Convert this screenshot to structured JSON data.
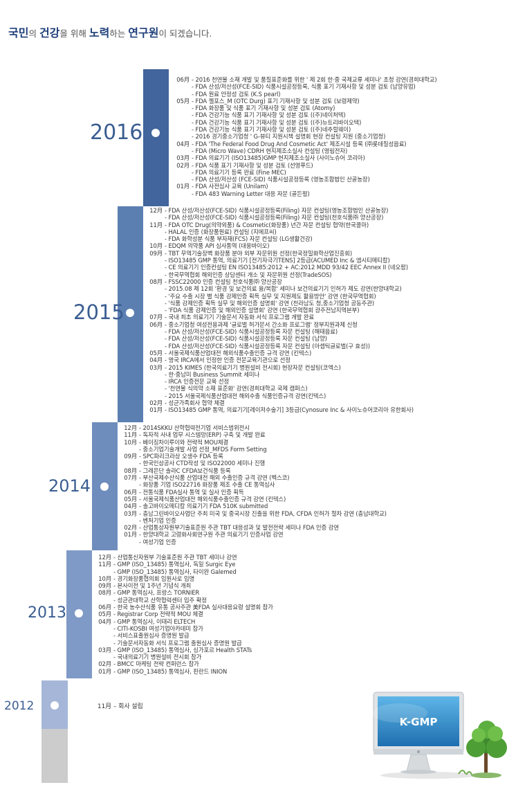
{
  "headline": {
    "p1": "국민",
    "p2": "의 ",
    "p3": "건강",
    "p4": "을 위해 ",
    "p5": "노력",
    "p6": "하는 ",
    "p7": "연구원",
    "p8": "이 되겠습니다."
  },
  "colors": {
    "bar_2016": "#41659c",
    "bar_2015": "#5c7fb2",
    "bar_2014": "#6e8dbd",
    "bar_2013": "#7f9ac6",
    "bar_2012": "#a5b6d8",
    "bar_gray": "#cccccc",
    "year_text": "#3a5d91"
  },
  "logo_text": "K-GMP",
  "years": [
    {
      "year": "2016",
      "events": [
        {
          "m": "06月",
          "t": "- 2016 천연물 소재 개발 및 품질표준화를 위한 ' 제 2회 한·중 국제교류 세미나' 초청 강연(경희대학교)"
        },
        {
          "m": "",
          "t": "- FDA 산성/저산성(FCE-SID) 식품시설공정등록, 식품 표기 기재사항 및 성분 검토 (남양유업)"
        },
        {
          "m": "",
          "t": "- FDA 원료 안정성 검토 (K.S pearl)"
        },
        {
          "m": "05月",
          "t": "- FDA 젤포스_M (OTC Durg) 표기 기재사항 및 성분 검토 (보령제약)"
        },
        {
          "m": "",
          "t": "- FDA 화장품 및 식품 표기 기재사항 및 성분 검토 (Atomy)"
        },
        {
          "m": "",
          "t": "- FDA 건강기능 식품 표기 기재사항 및 성분 검토 ((주)네이처텍)"
        },
        {
          "m": "",
          "t": "- FDA 건강기능 식품 표기 기재사항 및 성분 검토 ((주)뉴트리바이오텍)"
        },
        {
          "m": "",
          "t": "- FDA 건강기능 식품 표기 기재사항 및 성분 검토 ((주)네추럴웨이)"
        },
        {
          "m": "",
          "t": "- 2016 경기중소기업청 ' G-뷰티 지원시책 설명회 현장 컨설팅 지원 (중소기업청)"
        },
        {
          "m": "04月",
          "t": "- FDA 'The Federal Food Drug And Cosmetic Act' 제조시설 등록 (㈜롯데칠성음료)"
        },
        {
          "m": "",
          "t": "- FDA (Micro Wave) CDRH 현지제조소실사 컨설팅 (영림전자)"
        },
        {
          "m": "03月",
          "t": "- FDA 의료기기 (ISO13485)GMP 현지제조소실사 (사이노슈어 코리아)"
        },
        {
          "m": "02月",
          "t": "- FDA 식품 표기 기재사항 및 성분 검토 (선영푸드)"
        },
        {
          "m": "",
          "t": "- FDA 의료기기 등록 완료 (Fine MEC)"
        },
        {
          "m": "",
          "t": "- FDA 산성/저산성 (FCE-SID) 식품시설공정등록 (영농조합법인 산골농장)"
        },
        {
          "m": "01月",
          "t": "- FDA 사전심사 교육 (Unilam)"
        },
        {
          "m": "",
          "t": "- FDA 483 Warning Letter 대응 자문 (골든펄)"
        }
      ]
    },
    {
      "year": "2015",
      "events": [
        {
          "m": "12月",
          "t": "- FDA 산성/저산성(FCE-SID) 식품시설공정등록(Filing) 자문 컨설팅(영농조합법인 산골농장)"
        },
        {
          "m": "",
          "t": "- FDA 산성/저산성(FCE-SID) 식품시설공정등록(Filing) 자문 컨설팅(천호식품㈜ 양산공장)"
        },
        {
          "m": "11月",
          "t": "- FDA OTC Drug(의약외품) & Cosmetic(화장품) 년간 자문 컨설팅 협약(한국콜마)"
        },
        {
          "m": "",
          "t": "- HALAL 인증 (화장품원료) 컨설팅 (지에프씨)"
        },
        {
          "m": "",
          "t": "- FDA 화학성분 식품 부자재(FCS) 자문 컨설팅 (LG생활건강)"
        },
        {
          "m": "10月",
          "t": "- EDQM 의약품 API 심사통역 (대웅바이오)"
        },
        {
          "m": "09月",
          "t": "- TBT 무역기술장벽 화장품 분야 외부 자문위원 선정(한국정밀화학산업진흥회)"
        },
        {
          "m": "",
          "t": "- ISO13485 GMP 통역, 의료기기 [전기자극기TENS] 2등급(ACUMED Inc & 엠시티메티칼)"
        },
        {
          "m": "",
          "t": "- CE 의료기기 인증컨설팅 EN ISO13485:2012 + AC:2012 MDD 93/42 EEC Annex II (네오팜)"
        },
        {
          "m": "",
          "t": "- 한국무역협회 해외인증 상담센터 개소 및 자문위원 선정(TradeSOS)"
        },
        {
          "m": "08月",
          "t": "- FSSC22000 인증 컨설팅 천호식품㈜ 양산공장"
        },
        {
          "m": "",
          "t": "- 2015.08 제 12회 '환경 및 보건의료 융/복합' 세미나 보건의료기기 인허가 제도 강연(한양대학교)"
        },
        {
          "m": "",
          "t": "- '주요 수출 시장 별 식품 강제인증 획득 실무 및 지원제도 활용방안' 강연 (한국무역협회)"
        },
        {
          "m": "",
          "t": "- '식품 강제인증 획득 실무 및 해외인증 설명회' 강연 (천라남도 청,중소기업청 공동주관)"
        },
        {
          "m": "",
          "t": "- 'FDA 식품 강제인증 및 해외인증 설명회' 강연 (한국무역협회 광주전남지역본부)"
        },
        {
          "m": "07月",
          "t": "- 국내 최초 의료기기 기술문서 자동화 서식 프로그램 개발 완료"
        },
        {
          "m": "06月",
          "t": "- 중소기업청 여성전용과제 '글로벌 허가문서 간소화 프로그램' 정부지원과제 신청"
        },
        {
          "m": "",
          "t": "- FDA 산성/저산성(FCE-SID) 식품시설공정등록 자문 컨설팅 (해태음료)"
        },
        {
          "m": "",
          "t": "- FDA 산성/저산성(FCE-SID) 식품시설공정등록 자문 컨설팅 (남양)"
        },
        {
          "m": "",
          "t": "- FDA 산성/저산성(FCE-SID) 식품시설공정등록 자문 컨설팅 (아셉틱글로벌(구 효성))"
        },
        {
          "m": "05月",
          "t": "- 서울국제식품산업대전 해외식품수출인증 규격 강연 (킨텍스)"
        },
        {
          "m": "04月",
          "t": "- 영국 IRCA에서 인정한 인증 전문교육기관으로 선정"
        },
        {
          "m": "03月",
          "t": "- 2015 KIMES (한국의료기기 병원설비 전시회) 현장자문 컨설팅(코엑스)"
        },
        {
          "m": "",
          "t": "- 한·중남미 Business Summit 세미나"
        },
        {
          "m": "",
          "t": "- IRCA 인증전문 교육 선정"
        },
        {
          "m": "",
          "t": "- '천연물 식의약 소재 표준화' 강연(경희대학교 국제 캠퍼스)"
        },
        {
          "m": "",
          "t": "- 2015 서울국제식품산업대전 해외수출 식품인증규격 강연(킨텍스)"
        },
        {
          "m": "02月",
          "t": "- 성균가족회사 협약 체결"
        },
        {
          "m": "01月",
          "t": "- ISO13485 GMP 통역, 의료기기[레이저수술기] 3등급(Cynosure Inc & 사이노슈어코리아 유한회사)"
        }
      ]
    },
    {
      "year": "2014",
      "events": [
        {
          "m": "12月",
          "t": "- 2014SKKU 산학협력전기업 서비스범위전시"
        },
        {
          "m": "11月",
          "t": "- 독자적 사내 업무 시스템망(ERP) 구축 및 개발 완료"
        },
        {
          "m": "10月",
          "t": "- 베이징차이루이와 전략적 MOU체결"
        },
        {
          "m": "",
          "t": "- 중소기업기술개발 사업 선정_MFDS Form Setting"
        },
        {
          "m": "09月",
          "t": "- SPC파리크라상 오생수 FDA 등록"
        },
        {
          "m": "",
          "t": "- 한국인삼공사 CTD작성 및 ISO22000 세미나 진행"
        },
        {
          "m": "08月",
          "t": "- 그레은단 솔라C CFDA보건식품 등록"
        },
        {
          "m": "07月",
          "t": "- 부산국제수산식품 산업대전 해외 수출인증 규격 강연 (벡스코)"
        },
        {
          "m": "",
          "t": "- 화장품 기업 ISO22716 화장품 제조 수출 CE 통역심사"
        },
        {
          "m": "06月",
          "t": "- 전통식품 FDA실사 통역 및 실사 인증 획득"
        },
        {
          "m": "05月",
          "t": "- 서울국제식품산업대전 해외식품수출인증 규격 강연 (킨텍스)"
        },
        {
          "m": "04月",
          "t": "- 솔고바이오메디칼 의료기기 FDA 510K submitted"
        },
        {
          "m": "03月",
          "t": "- 충남그린바이오사업단 주최 미국 및 중국시장 진출을 위한 FDA, CFDA 인허가 절차 강연 (충남대학교)"
        },
        {
          "m": "",
          "t": "- 벤처기업 인증"
        },
        {
          "m": "02月",
          "t": "- 산업통상자원부기술표준원 주관 TBT 대응성과 및 발전전략 세미나 FDA 인증 강연"
        },
        {
          "m": "01月",
          "t": "- 한양대학교 고령화사회연구원 주관 의료기기 인증사업 강연"
        },
        {
          "m": "",
          "t": "- 여성기업 인증"
        }
      ]
    },
    {
      "year": "2013",
      "events": [
        {
          "m": "12月",
          "t": "- 산업통신자원부 기술표준원 주관 TBT 세미나 강연"
        },
        {
          "m": "11月",
          "t": "- GMP (ISO_13485) 통역심사, 독일 Surgic Eye"
        },
        {
          "m": "",
          "t": "- GMP (ISO_13485) 통역심사, 타이완 Galemed"
        },
        {
          "m": "10月",
          "t": "- 경기화장품협의회 임원사로 임명"
        },
        {
          "m": "09月",
          "t": "- 본사이전 및 1주년 기념식 개최"
        },
        {
          "m": "08月",
          "t": "- GMP 통역심사, 프랑스 TORNIER"
        },
        {
          "m": "",
          "t": "- 성균관대학교 산학협력센터 입주 확정"
        },
        {
          "m": "06月",
          "t": "- 한국 농수산식품 유통 공사주관 美FDA 실사대응요령 설명회 참가"
        },
        {
          "m": "05月",
          "t": "- Registrar Corp 전략적 MOU 체결"
        },
        {
          "m": "04月",
          "t": "- GMP 통역심사, 이태리 ELTECH"
        },
        {
          "m": "",
          "t": "- CITI-KOSBI 여성기업아카데미 참가"
        },
        {
          "m": "",
          "t": "- 서비스표출원심사 증명원 발급"
        },
        {
          "m": "",
          "t": "- 기술문서자동화 서식 프로그램 출원심사 증명원 발급"
        },
        {
          "m": "03月",
          "t": "- GMP (ISO_13485) 통역심사, 싱가포르 Health STATs"
        },
        {
          "m": "",
          "t": "- 국내의료기기 병원설비 전시회 참가"
        },
        {
          "m": "02月",
          "t": "- BMCC 마케팅 전략 컨퍼런스 참가"
        },
        {
          "m": "01月",
          "t": "- GMP (ISO_13485) 통역심사, 핀란드 INION"
        }
      ]
    },
    {
      "year": "2012",
      "events": [
        {
          "m": "11月",
          "t": "– 회사 설립"
        }
      ]
    }
  ]
}
